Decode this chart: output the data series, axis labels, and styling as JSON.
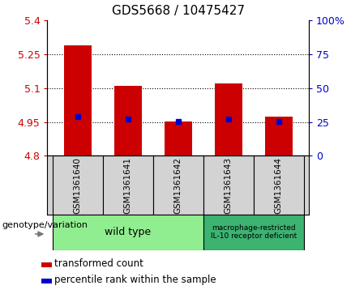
{
  "title": "GDS5668 / 10475427",
  "samples": [
    "GSM1361640",
    "GSM1361641",
    "GSM1361642",
    "GSM1361643",
    "GSM1361644"
  ],
  "bar_bottoms": [
    4.8,
    4.8,
    4.8,
    4.8,
    4.8
  ],
  "bar_tops": [
    5.29,
    5.11,
    4.952,
    5.12,
    4.975
  ],
  "percentile_values": [
    4.975,
    4.964,
    4.952,
    4.962,
    4.952
  ],
  "ylim": [
    4.8,
    5.4
  ],
  "yticks_left": [
    4.8,
    4.95,
    5.1,
    5.25,
    5.4
  ],
  "yticks_right": [
    0,
    25,
    50,
    75,
    100
  ],
  "right_ylim": [
    0,
    100
  ],
  "bar_color": "#cc0000",
  "percentile_color": "#0000cc",
  "tick_label_color_left": "#cc0000",
  "tick_label_color_right": "#0000cc",
  "sample_area_color": "#d3d3d3",
  "genotype_wt_color": "#90ee90",
  "genotype_mut_color": "#3cb371",
  "wt_label": "wild type",
  "mut_label": "macrophage-restricted\nIL-10 receptor deficient",
  "genotype_label": "genotype/variation",
  "legend_bar_label": "transformed count",
  "legend_pct_label": "percentile rank within the sample",
  "bar_width": 0.55,
  "figsize": [
    4.33,
    3.63
  ],
  "dpi": 100
}
